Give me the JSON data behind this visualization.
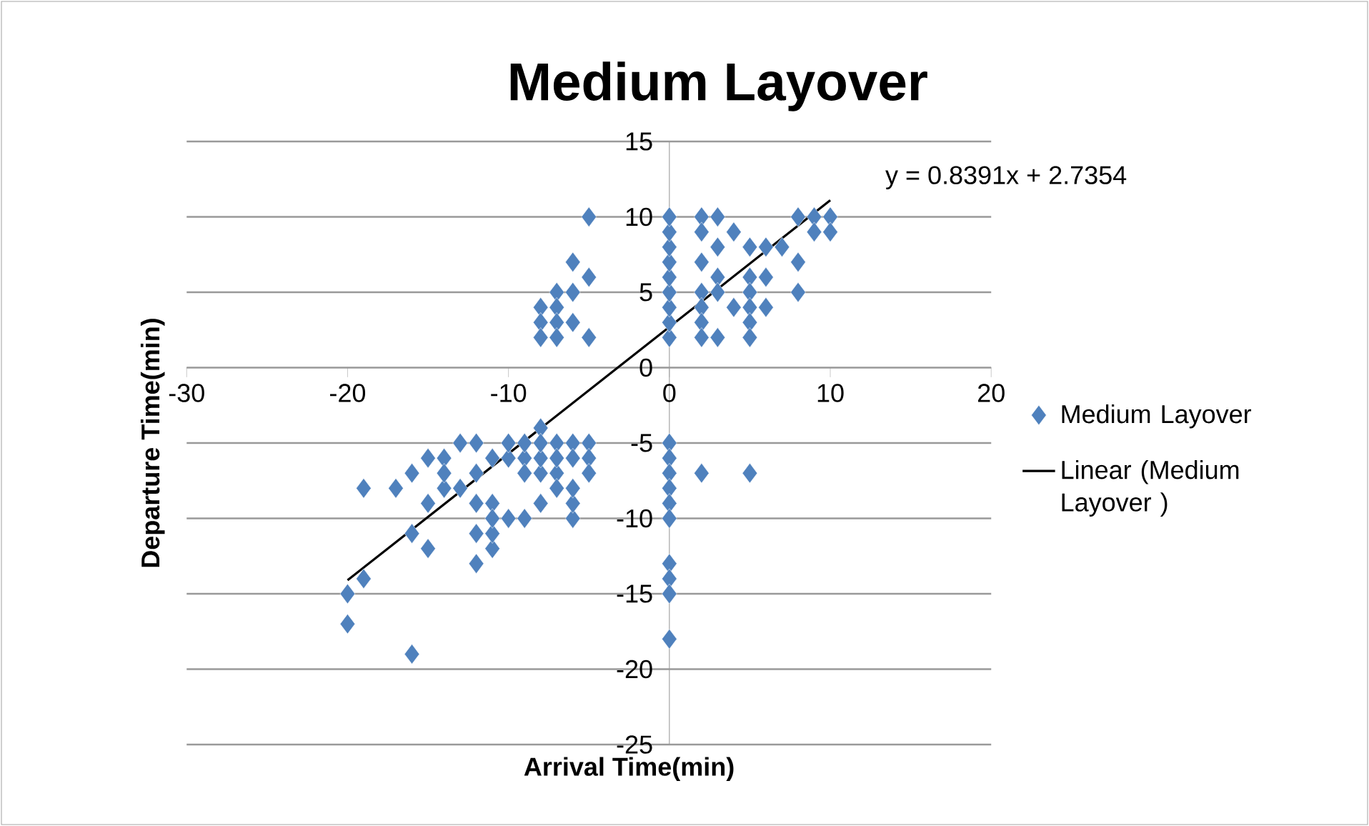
{
  "chart_data": {
    "type": "scatter",
    "title": "Medium Layover",
    "xlabel": "Arrival Time(min)",
    "ylabel": "Departure Time(min)",
    "xlim": [
      -30,
      20
    ],
    "ylim": [
      -25,
      15
    ],
    "xticks": [
      -30,
      -20,
      -10,
      0,
      10,
      20
    ],
    "yticks": [
      -25,
      -20,
      -15,
      -10,
      -5,
      0,
      5,
      10,
      15
    ],
    "grid": "y",
    "legend": "right",
    "marker": "diamond",
    "annotations": [
      "y = 0.8391x + 2.7354"
    ],
    "series": [
      {
        "name": "Medium Layover",
        "color": "#4f81bd",
        "x": [
          -5,
          -6,
          -5,
          -7,
          -6,
          -8,
          -7,
          -8,
          -7,
          -6,
          -8,
          -7,
          -5,
          0,
          0,
          0,
          0,
          0,
          0,
          0,
          0,
          0,
          0,
          0,
          0,
          0,
          0,
          0,
          0,
          0,
          0,
          0,
          2,
          5,
          2,
          3,
          2,
          4,
          3,
          5,
          6,
          7,
          8,
          9,
          10,
          9,
          10,
          8,
          2,
          3,
          5,
          6,
          8,
          2,
          3,
          5,
          5,
          2,
          4,
          6,
          2,
          5,
          3,
          5,
          2,
          -19,
          -17,
          -20,
          -19,
          -20,
          -16,
          -16,
          -15,
          -12,
          -12,
          -11,
          -11,
          -9,
          -6,
          -6,
          -8,
          -13,
          -12,
          -15,
          -16,
          -14,
          -15,
          -14,
          -13,
          -12,
          -11,
          -11,
          -10,
          -10,
          -9,
          -8,
          -7,
          -6,
          -5,
          -5,
          -5,
          -7,
          -7,
          -6,
          -8,
          -7,
          -10,
          -8,
          -14,
          -9,
          -11,
          -12,
          -6,
          -9,
          -8
        ],
        "values": [
          10,
          7,
          6,
          5,
          5,
          4,
          4,
          3,
          3,
          3,
          2,
          2,
          2,
          2,
          3,
          4,
          5,
          6,
          7,
          8,
          9,
          10,
          -5,
          -6,
          -7,
          -8,
          -9,
          -10,
          -13,
          -14,
          -15,
          -18,
          -7,
          -7,
          10,
          10,
          9,
          9,
          8,
          8,
          8,
          8,
          10,
          10,
          10,
          9,
          9,
          7,
          7,
          6,
          6,
          6,
          5,
          5,
          5,
          5,
          4,
          4,
          4,
          4,
          3,
          3,
          2,
          2,
          2,
          -8,
          -8,
          -15,
          -14,
          -17,
          -19,
          -11,
          -12,
          -13,
          -11,
          -12,
          -11,
          -10,
          -10,
          -9,
          -9,
          -5,
          -5,
          -6,
          -7,
          -6,
          -9,
          -8,
          -8,
          -9,
          -9,
          -10,
          -10,
          -6,
          -6,
          -7,
          -5,
          -5,
          -5,
          -6,
          -7,
          -7,
          -8,
          -8,
          -6,
          -6,
          -5,
          -4,
          -7,
          -5,
          -6,
          -7,
          -6,
          -7,
          -5
        ]
      },
      {
        "name": "Linear (Medium Layover )",
        "type": "line",
        "marker": "none",
        "color": "#000000",
        "x": [
          -20,
          10
        ],
        "values": [
          -14.1,
          11.1
        ]
      }
    ]
  }
}
